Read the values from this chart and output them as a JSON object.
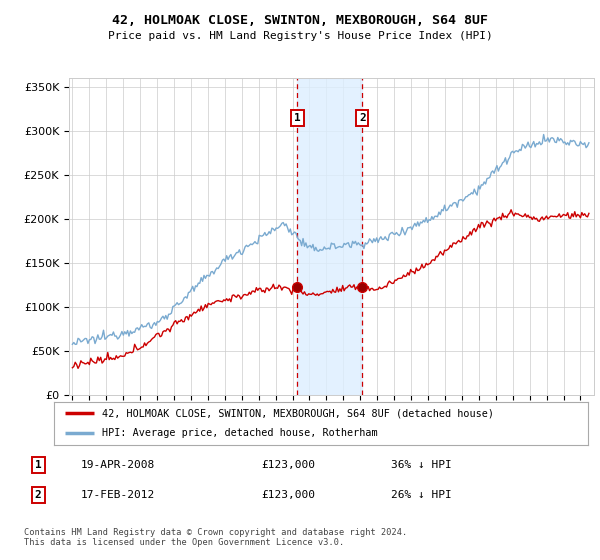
{
  "title": "42, HOLMOAK CLOSE, SWINTON, MEXBOROUGH, S64 8UF",
  "subtitle": "Price paid vs. HM Land Registry's House Price Index (HPI)",
  "legend_line1": "42, HOLMOAK CLOSE, SWINTON, MEXBOROUGH, S64 8UF (detached house)",
  "legend_line2": "HPI: Average price, detached house, Rotherham",
  "transaction1_date": "19-APR-2008",
  "transaction1_price": "£123,000",
  "transaction1_hpi": "36% ↓ HPI",
  "transaction1_year": 2008.29,
  "transaction2_date": "17-FEB-2012",
  "transaction2_price": "£123,000",
  "transaction2_hpi": "26% ↓ HPI",
  "transaction2_year": 2012.12,
  "footer": "Contains HM Land Registry data © Crown copyright and database right 2024.\nThis data is licensed under the Open Government Licence v3.0.",
  "ylim": [
    0,
    360000
  ],
  "xlim_start": 1994.8,
  "xlim_end": 2025.8,
  "red_color": "#cc0000",
  "blue_color": "#7aaad0",
  "shade_color": "#ddeeff",
  "grid_color": "#cccccc",
  "background_color": "#ffffff",
  "transaction1_value": 123000,
  "transaction2_value": 123000
}
